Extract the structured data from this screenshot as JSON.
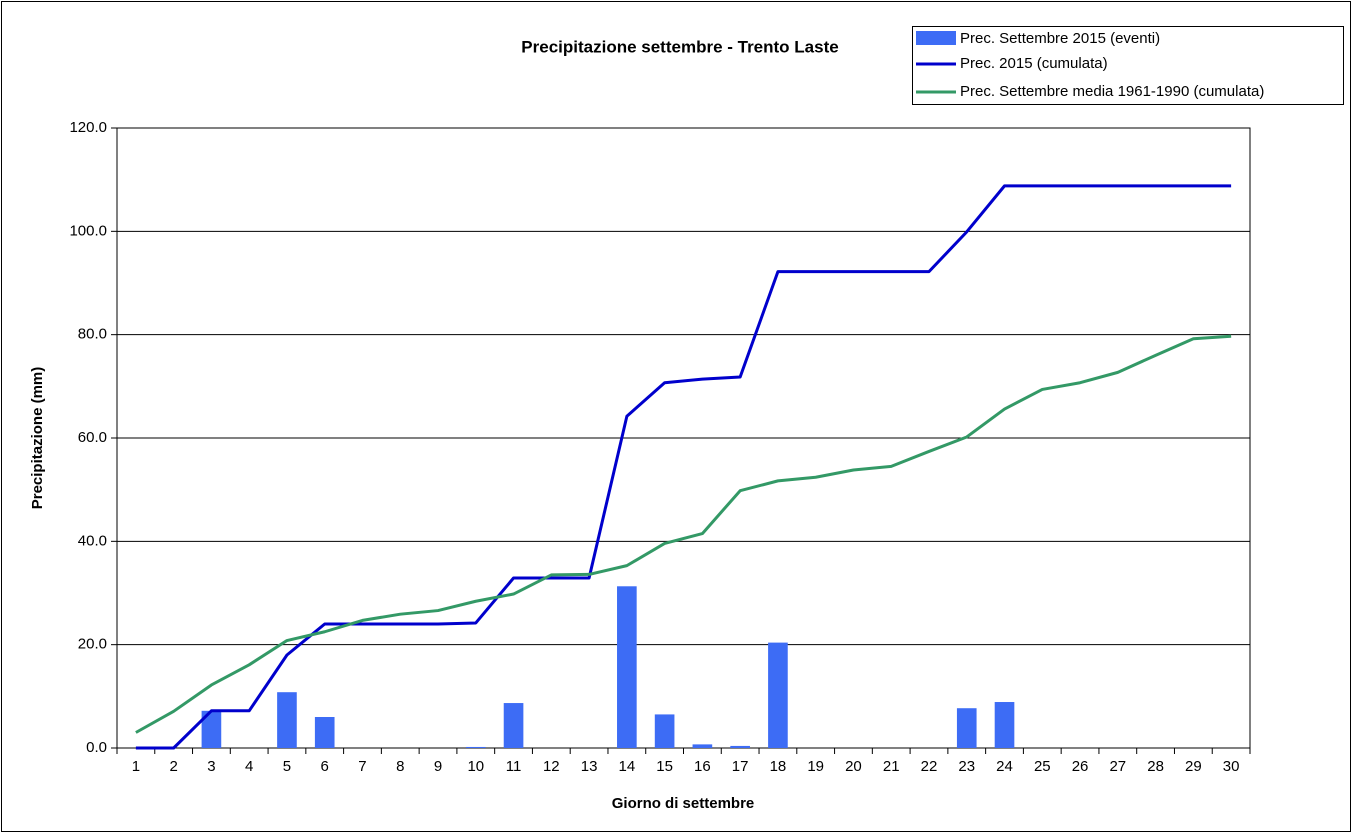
{
  "chart_data": {
    "type": "combo",
    "title": "Precipitazione settembre - Trento Laste",
    "x_label": "Giorno di settembre",
    "y_label": "Precipitazione (mm)",
    "categories": [
      "1",
      "2",
      "3",
      "4",
      "5",
      "6",
      "7",
      "8",
      "9",
      "10",
      "11",
      "12",
      "13",
      "14",
      "15",
      "16",
      "17",
      "18",
      "19",
      "20",
      "21",
      "22",
      "23",
      "24",
      "25",
      "26",
      "27",
      "28",
      "29",
      "30"
    ],
    "series": [
      {
        "name": "Prec. Settembre 2015 (eventi)",
        "type": "bar",
        "color": "#3d6cf5",
        "values": [
          0,
          0,
          7.2,
          0,
          10.8,
          6.0,
          0,
          0,
          0,
          0.2,
          8.7,
          0,
          0,
          31.3,
          6.5,
          0.7,
          0.4,
          20.4,
          0,
          0,
          0,
          0,
          7.7,
          8.9,
          0,
          0,
          0,
          0,
          0,
          0
        ]
      },
      {
        "name": "Prec. 2015 (cumulata)",
        "type": "line",
        "color": "#0000cc",
        "values": [
          0,
          0,
          7.2,
          7.2,
          18.0,
          24.0,
          24.0,
          24.0,
          24.0,
          24.2,
          32.9,
          32.9,
          32.9,
          64.2,
          70.7,
          71.4,
          71.8,
          92.2,
          92.2,
          92.2,
          92.2,
          92.2,
          99.9,
          108.8,
          108.8,
          108.8,
          108.8,
          108.8,
          108.8,
          108.8
        ]
      },
      {
        "name": "Prec. Settembre media 1961-1990 (cumulata)",
        "type": "line",
        "color": "#339966",
        "values": [
          3.0,
          7.1,
          12.2,
          16.1,
          20.8,
          22.5,
          24.7,
          25.9,
          26.6,
          28.4,
          29.8,
          33.5,
          33.6,
          35.3,
          39.6,
          41.5,
          49.8,
          51.7,
          52.4,
          53.8,
          54.5,
          57.4,
          60.2,
          65.6,
          69.4,
          70.7,
          72.7,
          76.0,
          79.2,
          79.7
        ]
      }
    ],
    "ylim": [
      0,
      120
    ],
    "yticks": [
      {
        "value": 0,
        "label": "0.0"
      },
      {
        "value": 20,
        "label": "20.0"
      },
      {
        "value": 40,
        "label": "40.0"
      },
      {
        "value": 60,
        "label": "60.0"
      },
      {
        "value": 80,
        "label": "80.0"
      },
      {
        "value": 100,
        "label": "100.0"
      },
      {
        "value": 120,
        "label": "120.0"
      }
    ],
    "grid": true,
    "legend": "top-right"
  }
}
